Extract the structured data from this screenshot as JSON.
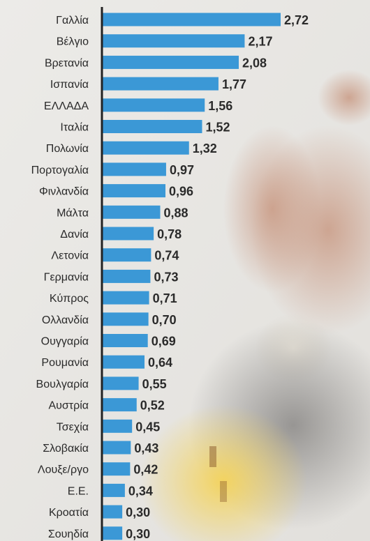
{
  "chart_data": {
    "type": "bar",
    "orientation": "horizontal",
    "categories": [
      "Γαλλία",
      "Βέλγιο",
      "Βρετανία",
      "Ισπανία",
      "ΕΛΛΑΔΑ",
      "Ιταλία",
      "Πολωνία",
      "Πορτογαλία",
      "Φινλανδία",
      "Μάλτα",
      "Δανία",
      "Λετονία",
      "Γερμανία",
      "Κύπρος",
      "Ολλανδία",
      "Ουγγαρία",
      "Ρουμανία",
      "Βουλγαρία",
      "Αυστρία",
      "Τσεχία",
      "Σλοβακία",
      "Λουξε/ργο",
      "Ε.Ε.",
      "Κροατία",
      "Σουηδία"
    ],
    "values": [
      2.72,
      2.17,
      2.08,
      1.77,
      1.56,
      1.52,
      1.32,
      0.97,
      0.96,
      0.88,
      0.78,
      0.74,
      0.73,
      0.71,
      0.7,
      0.69,
      0.64,
      0.55,
      0.52,
      0.45,
      0.43,
      0.42,
      0.34,
      0.3,
      0.3
    ],
    "value_labels": [
      "2,72",
      "2,17",
      "2,08",
      "1,77",
      "1,56",
      "1,52",
      "1,32",
      "0,97",
      "0,96",
      "0,88",
      "0,78",
      "0,74",
      "0,73",
      "0,71",
      "0,70",
      "0,69",
      "0,64",
      "0,55",
      "0,52",
      "0,45",
      "0,43",
      "0,42",
      "0,34",
      "0,30",
      "0,30"
    ],
    "bar_color": "#3b98d6",
    "label_color": "#2a2a2a",
    "value_color": "#2a2a2a",
    "axis_color": "#222222",
    "grid": false,
    "legend": "none"
  }
}
